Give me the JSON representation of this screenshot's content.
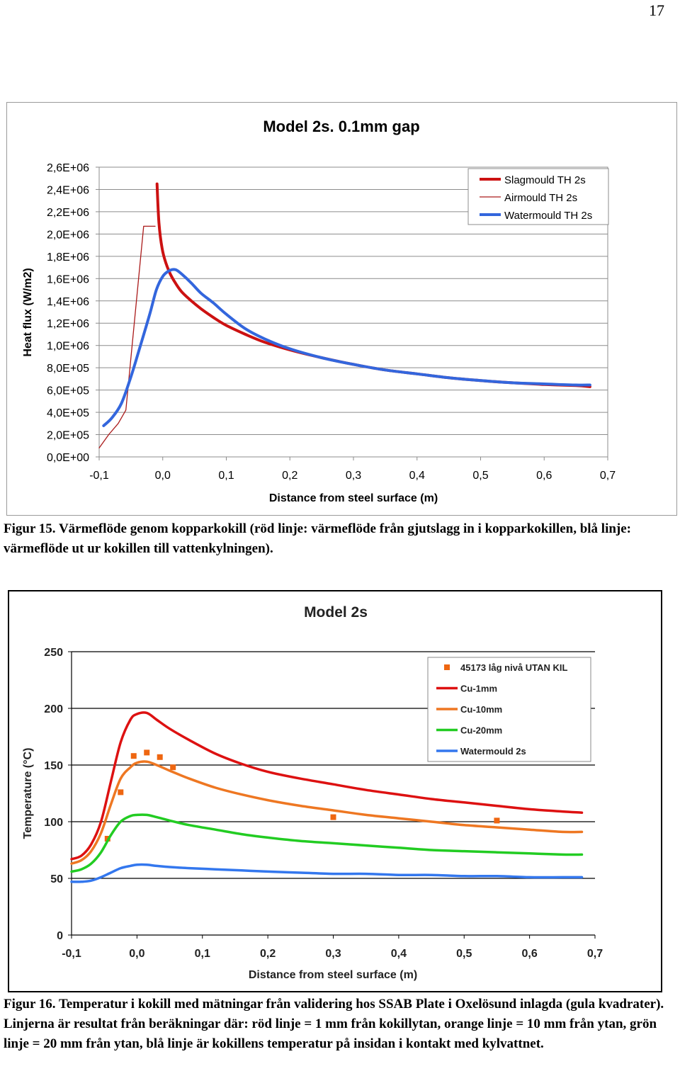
{
  "page": {
    "number": "17"
  },
  "figures": [
    {
      "caption": "Figur 15. Värmeflöde genom kopparkokill (röd linje: värmeflöde från gjutslagg in i kopparkokillen, blå linje: värmeflöde ut ur kokillen till vattenkylningen)."
    },
    {
      "caption": "Figur 16. Temperatur i kokill med mätningar från validering hos SSAB Plate i Oxelösund inlagda (gula kvadrater). Linjerna är resultat från beräkningar där: röd linje = 1 mm från kokillytan, orange linje = 10 mm från ytan, grön linje = 20 mm från ytan, blå linje är kokillens temperatur på insidan i kontakt med kylvattnet."
    }
  ],
  "chart_data": [
    {
      "type": "line",
      "title": "Model 2s. 0.1mm gap",
      "xlabel": "Distance from steel surface (m)",
      "ylabel": "Heat flux (W/m2)",
      "xlim": [
        -0.1,
        0.7
      ],
      "ylim": [
        0,
        2600000
      ],
      "x_ticks": [
        "-0,1",
        "0,0",
        "0,1",
        "0,2",
        "0,3",
        "0,4",
        "0,5",
        "0,6",
        "0,7"
      ],
      "y_ticks": [
        "0,0E+00",
        "2,0E+05",
        "4,0E+05",
        "6,0E+05",
        "8,0E+05",
        "1,0E+06",
        "1,2E+06",
        "1,4E+06",
        "1,6E+06",
        "1,8E+06",
        "2,0E+06",
        "2,2E+06",
        "2,4E+06",
        "2,6E+06"
      ],
      "grid": "horizontal",
      "legend_position": "top-right",
      "series": [
        {
          "name": "Slagmould TH 2s",
          "color": "#cc1111",
          "x": [
            -0.009,
            -0.006,
            -0.001,
            0.005,
            0.012,
            0.02,
            0.03,
            0.045,
            0.06,
            0.08,
            0.1,
            0.13,
            0.16,
            0.2,
            0.25,
            0.3,
            0.35,
            0.4,
            0.45,
            0.5,
            0.55,
            0.6,
            0.65,
            0.672
          ],
          "y": [
            2450000,
            2100000,
            1870000,
            1740000,
            1640000,
            1560000,
            1480000,
            1400000,
            1330000,
            1250000,
            1180000,
            1100000,
            1030000,
            960000,
            890000,
            830000,
            780000,
            745000,
            710000,
            685000,
            665000,
            650000,
            640000,
            630000
          ]
        },
        {
          "name": "Airmould TH 2s",
          "color": "#aa1a1a",
          "x": [
            -0.1,
            -0.085,
            -0.07,
            -0.058,
            -0.03,
            -0.012
          ],
          "y": [
            80000,
            200000,
            300000,
            420000,
            2070000,
            2070000
          ]
        },
        {
          "name": "Watermould TH 2s",
          "color": "#3366dd",
          "x": [
            -0.093,
            -0.08,
            -0.065,
            -0.05,
            -0.035,
            -0.02,
            -0.01,
            0.0,
            0.01,
            0.02,
            0.03,
            0.045,
            0.06,
            0.08,
            0.1,
            0.13,
            0.16,
            0.2,
            0.25,
            0.3,
            0.35,
            0.4,
            0.45,
            0.5,
            0.55,
            0.6,
            0.65,
            0.672
          ],
          "y": [
            280000,
            350000,
            480000,
            720000,
            1000000,
            1290000,
            1500000,
            1620000,
            1670000,
            1680000,
            1640000,
            1560000,
            1470000,
            1380000,
            1280000,
            1150000,
            1060000,
            970000,
            890000,
            830000,
            780000,
            745000,
            710000,
            685000,
            665000,
            655000,
            645000,
            645000
          ]
        }
      ]
    },
    {
      "type": "line",
      "title": "Model 2s",
      "xlabel": "Distance from steel surface (m)",
      "ylabel": "Temperature (°C)",
      "xlim": [
        -0.1,
        0.7
      ],
      "ylim": [
        0,
        250
      ],
      "x_ticks": [
        "-0,1",
        "0,0",
        "0,1",
        "0,2",
        "0,3",
        "0,4",
        "0,5",
        "0,6",
        "0,7"
      ],
      "y_ticks": [
        "0",
        "50",
        "100",
        "150",
        "200",
        "250"
      ],
      "grid": "horizontal",
      "legend_position": "top-right",
      "series": [
        {
          "name": "45173 låg nivå UTAN KIL",
          "kind": "scatter",
          "color": "#ee6611",
          "x": [
            -0.045,
            -0.025,
            -0.005,
            0.015,
            0.035,
            0.055,
            0.3,
            0.55
          ],
          "y": [
            85,
            126,
            158,
            161,
            157,
            148,
            104,
            101
          ]
        },
        {
          "name": "Cu-1mm",
          "color": "#dd1111",
          "x": [
            -0.1,
            -0.085,
            -0.07,
            -0.055,
            -0.04,
            -0.025,
            -0.01,
            0.0,
            0.015,
            0.03,
            0.05,
            0.08,
            0.12,
            0.16,
            0.2,
            0.25,
            0.3,
            0.35,
            0.4,
            0.45,
            0.5,
            0.55,
            0.6,
            0.65,
            0.68
          ],
          "y": [
            67,
            70,
            80,
            100,
            135,
            170,
            190,
            195,
            196,
            190,
            182,
            172,
            160,
            151,
            144,
            138,
            133,
            128,
            124,
            120,
            117,
            114,
            111,
            109,
            108
          ]
        },
        {
          "name": "Cu-10mm",
          "color": "#ee7722",
          "x": [
            -0.1,
            -0.085,
            -0.07,
            -0.055,
            -0.04,
            -0.025,
            -0.01,
            0.0,
            0.015,
            0.03,
            0.05,
            0.08,
            0.12,
            0.16,
            0.2,
            0.25,
            0.3,
            0.35,
            0.4,
            0.45,
            0.5,
            0.55,
            0.6,
            0.65,
            0.68
          ],
          "y": [
            63,
            66,
            74,
            90,
            115,
            138,
            148,
            152,
            153,
            150,
            145,
            138,
            130,
            124,
            119,
            114,
            110,
            106,
            103,
            100,
            97,
            95,
            93,
            91,
            91
          ]
        },
        {
          "name": "Cu-20mm",
          "color": "#22cc22",
          "x": [
            -0.1,
            -0.085,
            -0.07,
            -0.055,
            -0.04,
            -0.025,
            -0.01,
            0.0,
            0.015,
            0.03,
            0.05,
            0.08,
            0.12,
            0.16,
            0.2,
            0.25,
            0.3,
            0.35,
            0.4,
            0.45,
            0.5,
            0.55,
            0.6,
            0.65,
            0.68
          ],
          "y": [
            56,
            58,
            63,
            73,
            88,
            100,
            105,
            106,
            106,
            104,
            101,
            97,
            93,
            89,
            86,
            83,
            81,
            79,
            77,
            75,
            74,
            73,
            72,
            71,
            71
          ]
        },
        {
          "name": "Watermould 2s",
          "color": "#3377ee",
          "x": [
            -0.1,
            -0.085,
            -0.07,
            -0.055,
            -0.04,
            -0.025,
            -0.01,
            0.0,
            0.015,
            0.03,
            0.05,
            0.08,
            0.12,
            0.16,
            0.2,
            0.25,
            0.3,
            0.35,
            0.4,
            0.45,
            0.5,
            0.55,
            0.6,
            0.65,
            0.68
          ],
          "y": [
            47,
            47,
            48,
            51,
            55,
            59,
            61,
            62,
            62,
            61,
            60,
            59,
            58,
            57,
            56,
            55,
            54,
            54,
            53,
            53,
            52,
            52,
            51,
            51,
            51
          ]
        }
      ]
    }
  ]
}
